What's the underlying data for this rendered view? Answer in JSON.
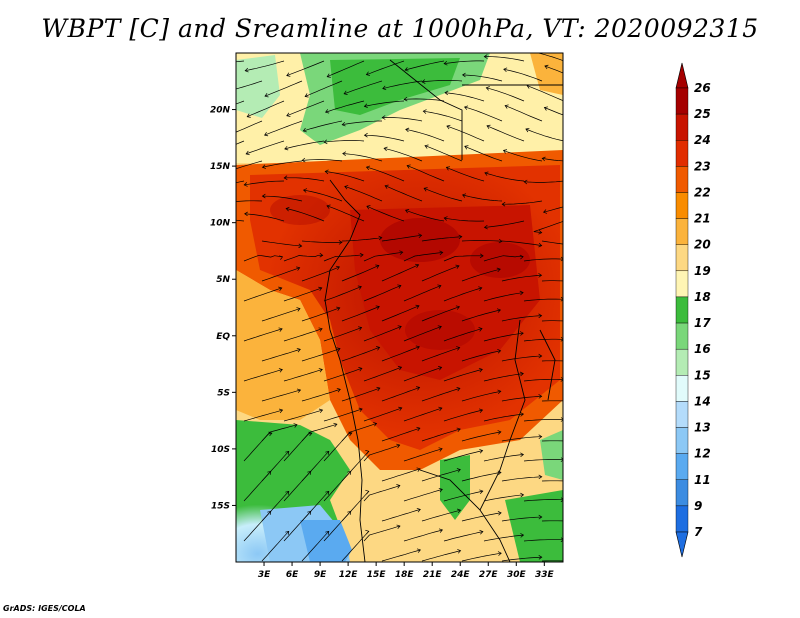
{
  "chart_data": {
    "type": "heatmap",
    "title": "WBPT [C] and Sreamline at 1000hPa, VT: 2020092315",
    "x_ticks": [
      "3E",
      "6E",
      "9E",
      "12E",
      "15E",
      "18E",
      "21E",
      "24E",
      "27E",
      "30E",
      "33E"
    ],
    "y_ticks": [
      "20N",
      "15N",
      "10N",
      "5N",
      "EQ",
      "5S",
      "10S",
      "15S"
    ],
    "xlim": [
      0,
      35
    ],
    "ylim": [
      -20,
      25
    ],
    "colorbar_levels": [
      "26",
      "25",
      "24",
      "23",
      "22",
      "21",
      "20",
      "19",
      "18",
      "17",
      "16",
      "15",
      "14",
      "13",
      "12",
      "11",
      "9",
      "7"
    ],
    "colorbar_colors": [
      "#a50000",
      "#c81400",
      "#e12d00",
      "#f05a00",
      "#f98c00",
      "#fbb33c",
      "#fdd883",
      "#fff5b4",
      "#3cbc3c",
      "#7ad77a",
      "#b4ecb4",
      "#e1fbfb",
      "#b4dcfb",
      "#8cc8f5",
      "#5aaaf0",
      "#3c8ce1",
      "#1e6ee1"
    ],
    "overlay": "streamlines"
  },
  "footer": "GrADS: IGES/COLA"
}
